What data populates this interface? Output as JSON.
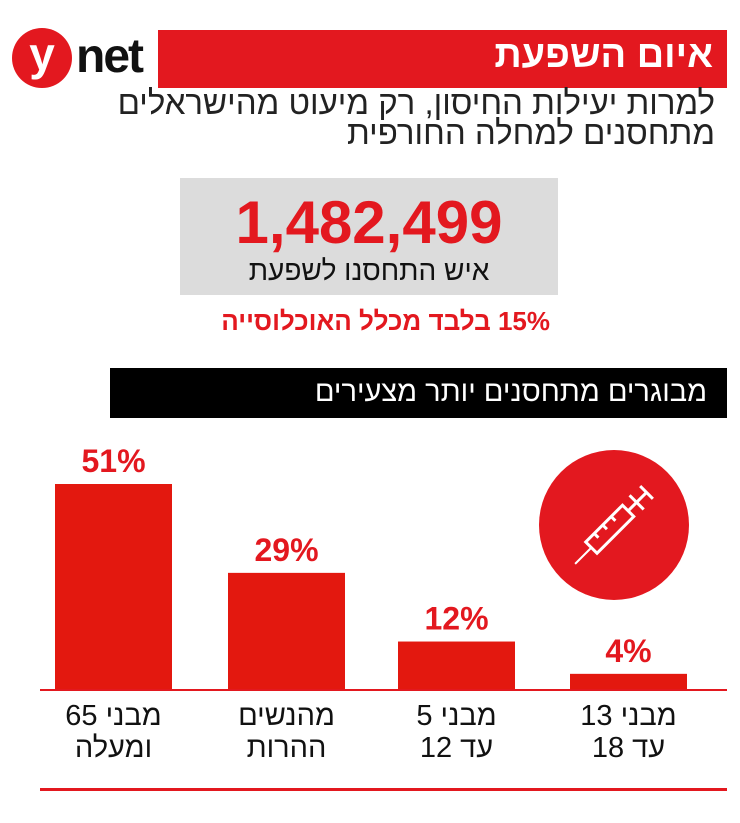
{
  "logo": {
    "y": "y",
    "net": "net"
  },
  "header": {
    "title": "איום השפעת",
    "subtitle_lines": [
      "למרות יעילות החיסון, רק מיעוט מהישראלים",
      "מתחסנים למחלה החורפית"
    ]
  },
  "stat": {
    "number": "1,482,499",
    "caption": "איש התחסנו לשפעת",
    "share": "15% בלבד מכלל האוכלוסייה"
  },
  "section_title": "מבוגרים מתחסנים יותר מצעירים",
  "colors": {
    "accent": "#e3181f",
    "bar": "#e3180f",
    "box": "#dcdcdc"
  },
  "icon": "syringe-icon",
  "chart_data": {
    "type": "bar",
    "categories": [
      [
        "מבני 65",
        "ומעלה"
      ],
      [
        "מהנשים",
        "ההרות"
      ],
      [
        "מבני 5",
        "עד 12"
      ],
      [
        "מבני 13",
        "עד 18"
      ]
    ],
    "values": [
      51,
      29,
      12,
      4
    ],
    "data_labels": [
      "51%",
      "29%",
      "12%",
      "4%"
    ],
    "ylim": [
      0,
      51
    ],
    "grid": false
  }
}
